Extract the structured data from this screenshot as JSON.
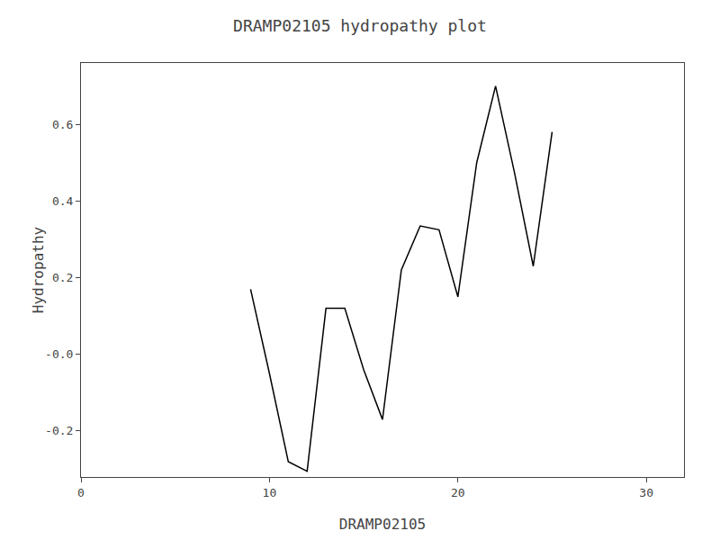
{
  "chart_data": {
    "type": "line",
    "title": "DRAMP02105 hydropathy plot",
    "xlabel": "DRAMP02105",
    "ylabel": "Hydropathy",
    "x": [
      9,
      10,
      11,
      12,
      13,
      14,
      15,
      16,
      17,
      18,
      19,
      20,
      21,
      22,
      23,
      24,
      25
    ],
    "values": [
      0.17,
      -0.05,
      -0.28,
      -0.305,
      0.12,
      0.12,
      -0.04,
      -0.17,
      0.22,
      0.335,
      0.325,
      0.15,
      0.5,
      0.7,
      0.475,
      0.23,
      0.58
    ],
    "color": "#000000",
    "xlim": [
      0,
      32
    ],
    "xticks": [
      0,
      10,
      20,
      30
    ],
    "ylim": [
      -0.32,
      0.76
    ],
    "yticks": [
      -0.2,
      {
        "value": 0.0,
        "label": "-0.0"
      },
      0.2,
      0.4,
      0.6
    ],
    "grid": false
  }
}
